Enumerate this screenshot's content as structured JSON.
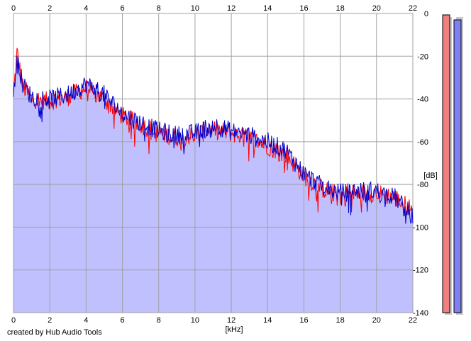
{
  "credit": "created by Hub Audio Tools",
  "chart_data": {
    "type": "area",
    "title": "",
    "xlabel": "[kHz]",
    "ylabel": "[dB]",
    "xlim": [
      0,
      22
    ],
    "ylim": [
      -140,
      0
    ],
    "x_ticks": [
      "0",
      "2",
      "4",
      "6",
      "8",
      "10",
      "12",
      "14",
      "16",
      "18",
      "20",
      "22"
    ],
    "y_ticks": [
      "0",
      "-20",
      "-40",
      "-60",
      "-80",
      "-100",
      "-120",
      "-140"
    ],
    "grid": true,
    "x": [
      0,
      0.2,
      0.5,
      1,
      2,
      3,
      4,
      5,
      6,
      7,
      8,
      9,
      10,
      11,
      12,
      13,
      14,
      15,
      16,
      17,
      18,
      19,
      20,
      21,
      22
    ],
    "series": [
      {
        "color": "#ff0000",
        "values": [
          -38,
          -18,
          -34,
          -40,
          -41,
          -39,
          -35,
          -40,
          -48,
          -52,
          -56,
          -58,
          -57,
          -54,
          -56,
          -58,
          -62,
          -66,
          -76,
          -82,
          -85,
          -84,
          -84,
          -86,
          -92
        ]
      },
      {
        "color": "#0000cc",
        "values": [
          -40,
          -20,
          -33,
          -39,
          -40,
          -38,
          -33,
          -38,
          -47,
          -51,
          -55,
          -57,
          -56,
          -52,
          -55,
          -57,
          -60,
          -64,
          -75,
          -81,
          -84,
          -83,
          -83,
          -86,
          -95
        ]
      }
    ],
    "fill_color": "#c0c0ff",
    "level_meters": [
      {
        "channel": "left",
        "color": "#f08080",
        "level_db": -139
      },
      {
        "channel": "right",
        "color": "#8080f0",
        "level_db": -136
      }
    ]
  }
}
